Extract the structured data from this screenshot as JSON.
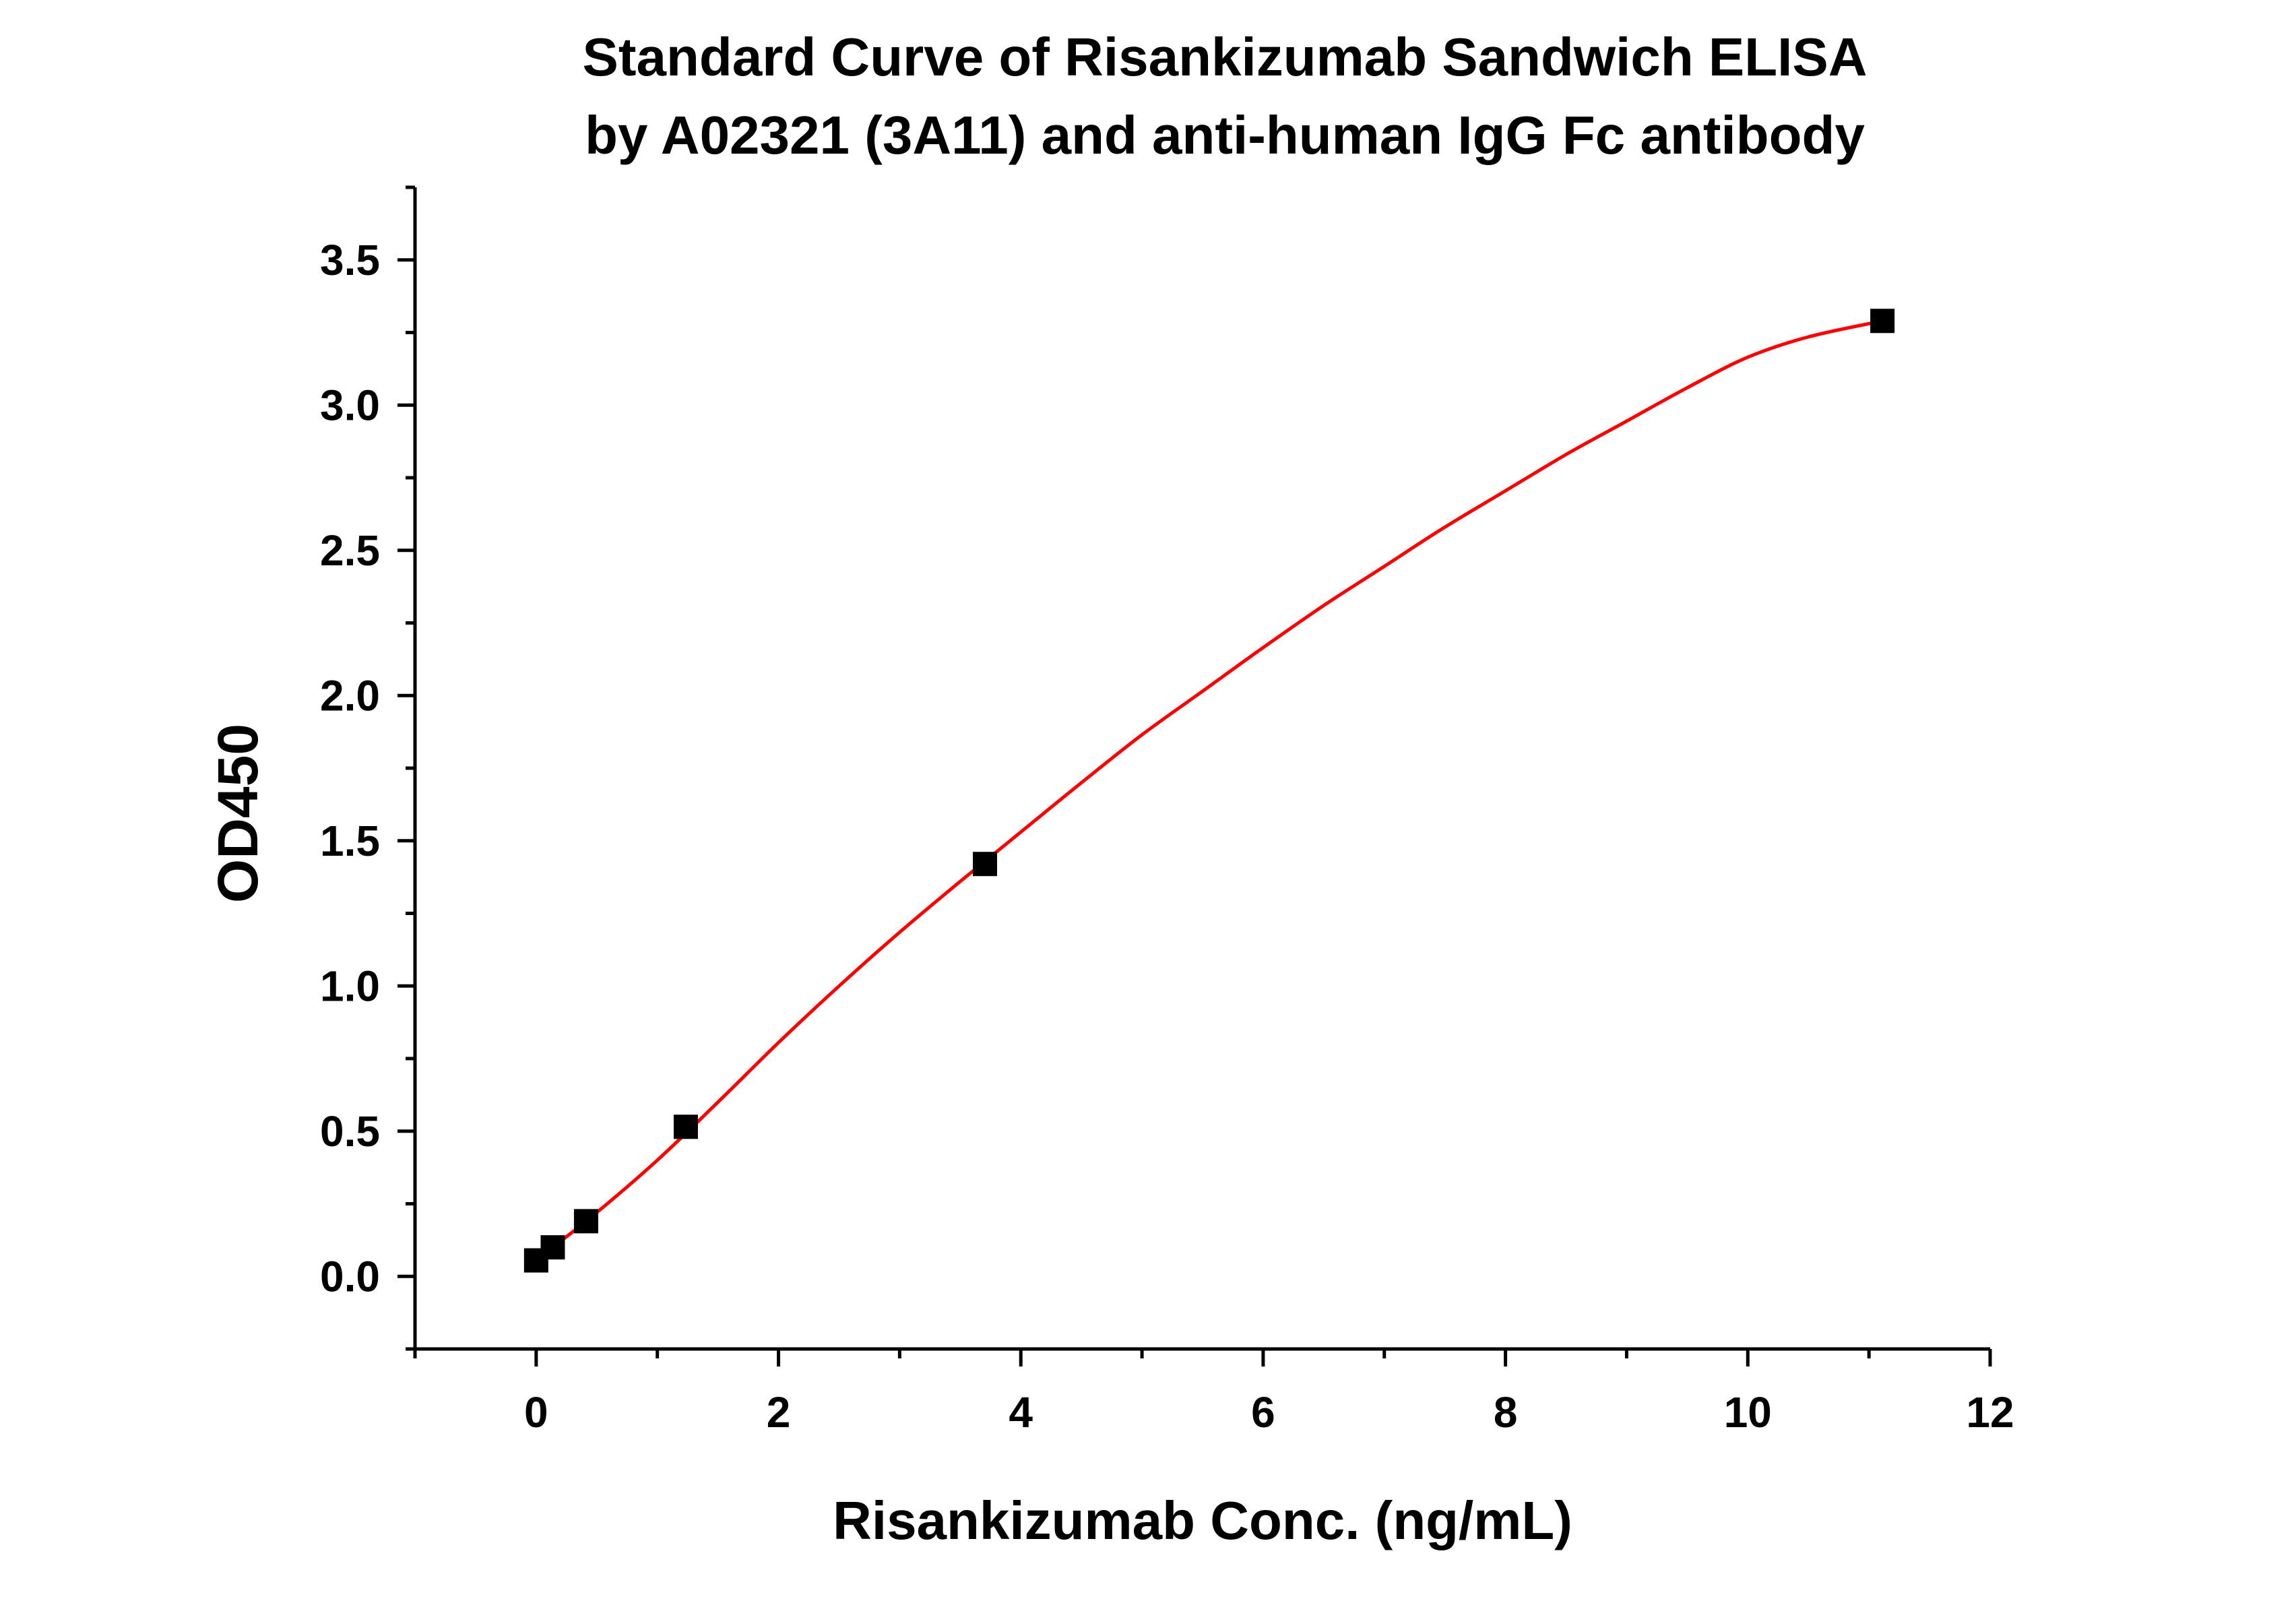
{
  "chart_data": {
    "type": "scatter",
    "title_lines": [
      "Standard Curve of Risankizumab Sandwich ELISA",
      "by A02321 (3A11) and anti-human IgG Fc antibody"
    ],
    "xlabel": "Risankizumab Conc. (ng/mL)",
    "ylabel": "OD450",
    "xlim": [
      -1,
      12
    ],
    "ylim": [
      -0.25,
      3.75
    ],
    "x_ticks": [
      0,
      2,
      4,
      6,
      8,
      10,
      12
    ],
    "x_tick_labels": [
      "0",
      "2",
      "4",
      "6",
      "8",
      "10",
      "12"
    ],
    "x_minor_step": 1,
    "y_ticks": [
      0.0,
      0.5,
      1.0,
      1.5,
      2.0,
      2.5,
      3.0,
      3.5
    ],
    "y_tick_labels": [
      "0.0",
      "0.5",
      "1.0",
      "1.5",
      "2.0",
      "2.5",
      "3.0",
      "3.5"
    ],
    "y_minor_step": 0.25,
    "grid": false,
    "legend": "none",
    "series": [
      {
        "kind": "points",
        "marker": "square",
        "color": "#000000",
        "x": [
          0,
          0.137,
          0.412,
          1.235,
          3.704,
          11.111
        ],
        "y": [
          0.055,
          0.1,
          0.19,
          0.515,
          1.42,
          3.29
        ]
      },
      {
        "kind": "fit-curve",
        "color": "#ff0000",
        "x": [
          0,
          0.5,
          1.0,
          1.5,
          2.0,
          2.5,
          3.0,
          3.5,
          4.0,
          4.5,
          5.0,
          5.5,
          6.0,
          6.5,
          7.0,
          7.5,
          8.0,
          8.5,
          9.0,
          9.5,
          10.0,
          10.5,
          11.111
        ],
        "y": [
          0.055,
          0.22,
          0.4,
          0.6,
          0.805,
          1.0,
          1.185,
          1.36,
          1.53,
          1.7,
          1.865,
          2.015,
          2.165,
          2.31,
          2.445,
          2.58,
          2.705,
          2.83,
          2.945,
          3.06,
          3.165,
          3.235,
          3.29
        ]
      }
    ]
  }
}
